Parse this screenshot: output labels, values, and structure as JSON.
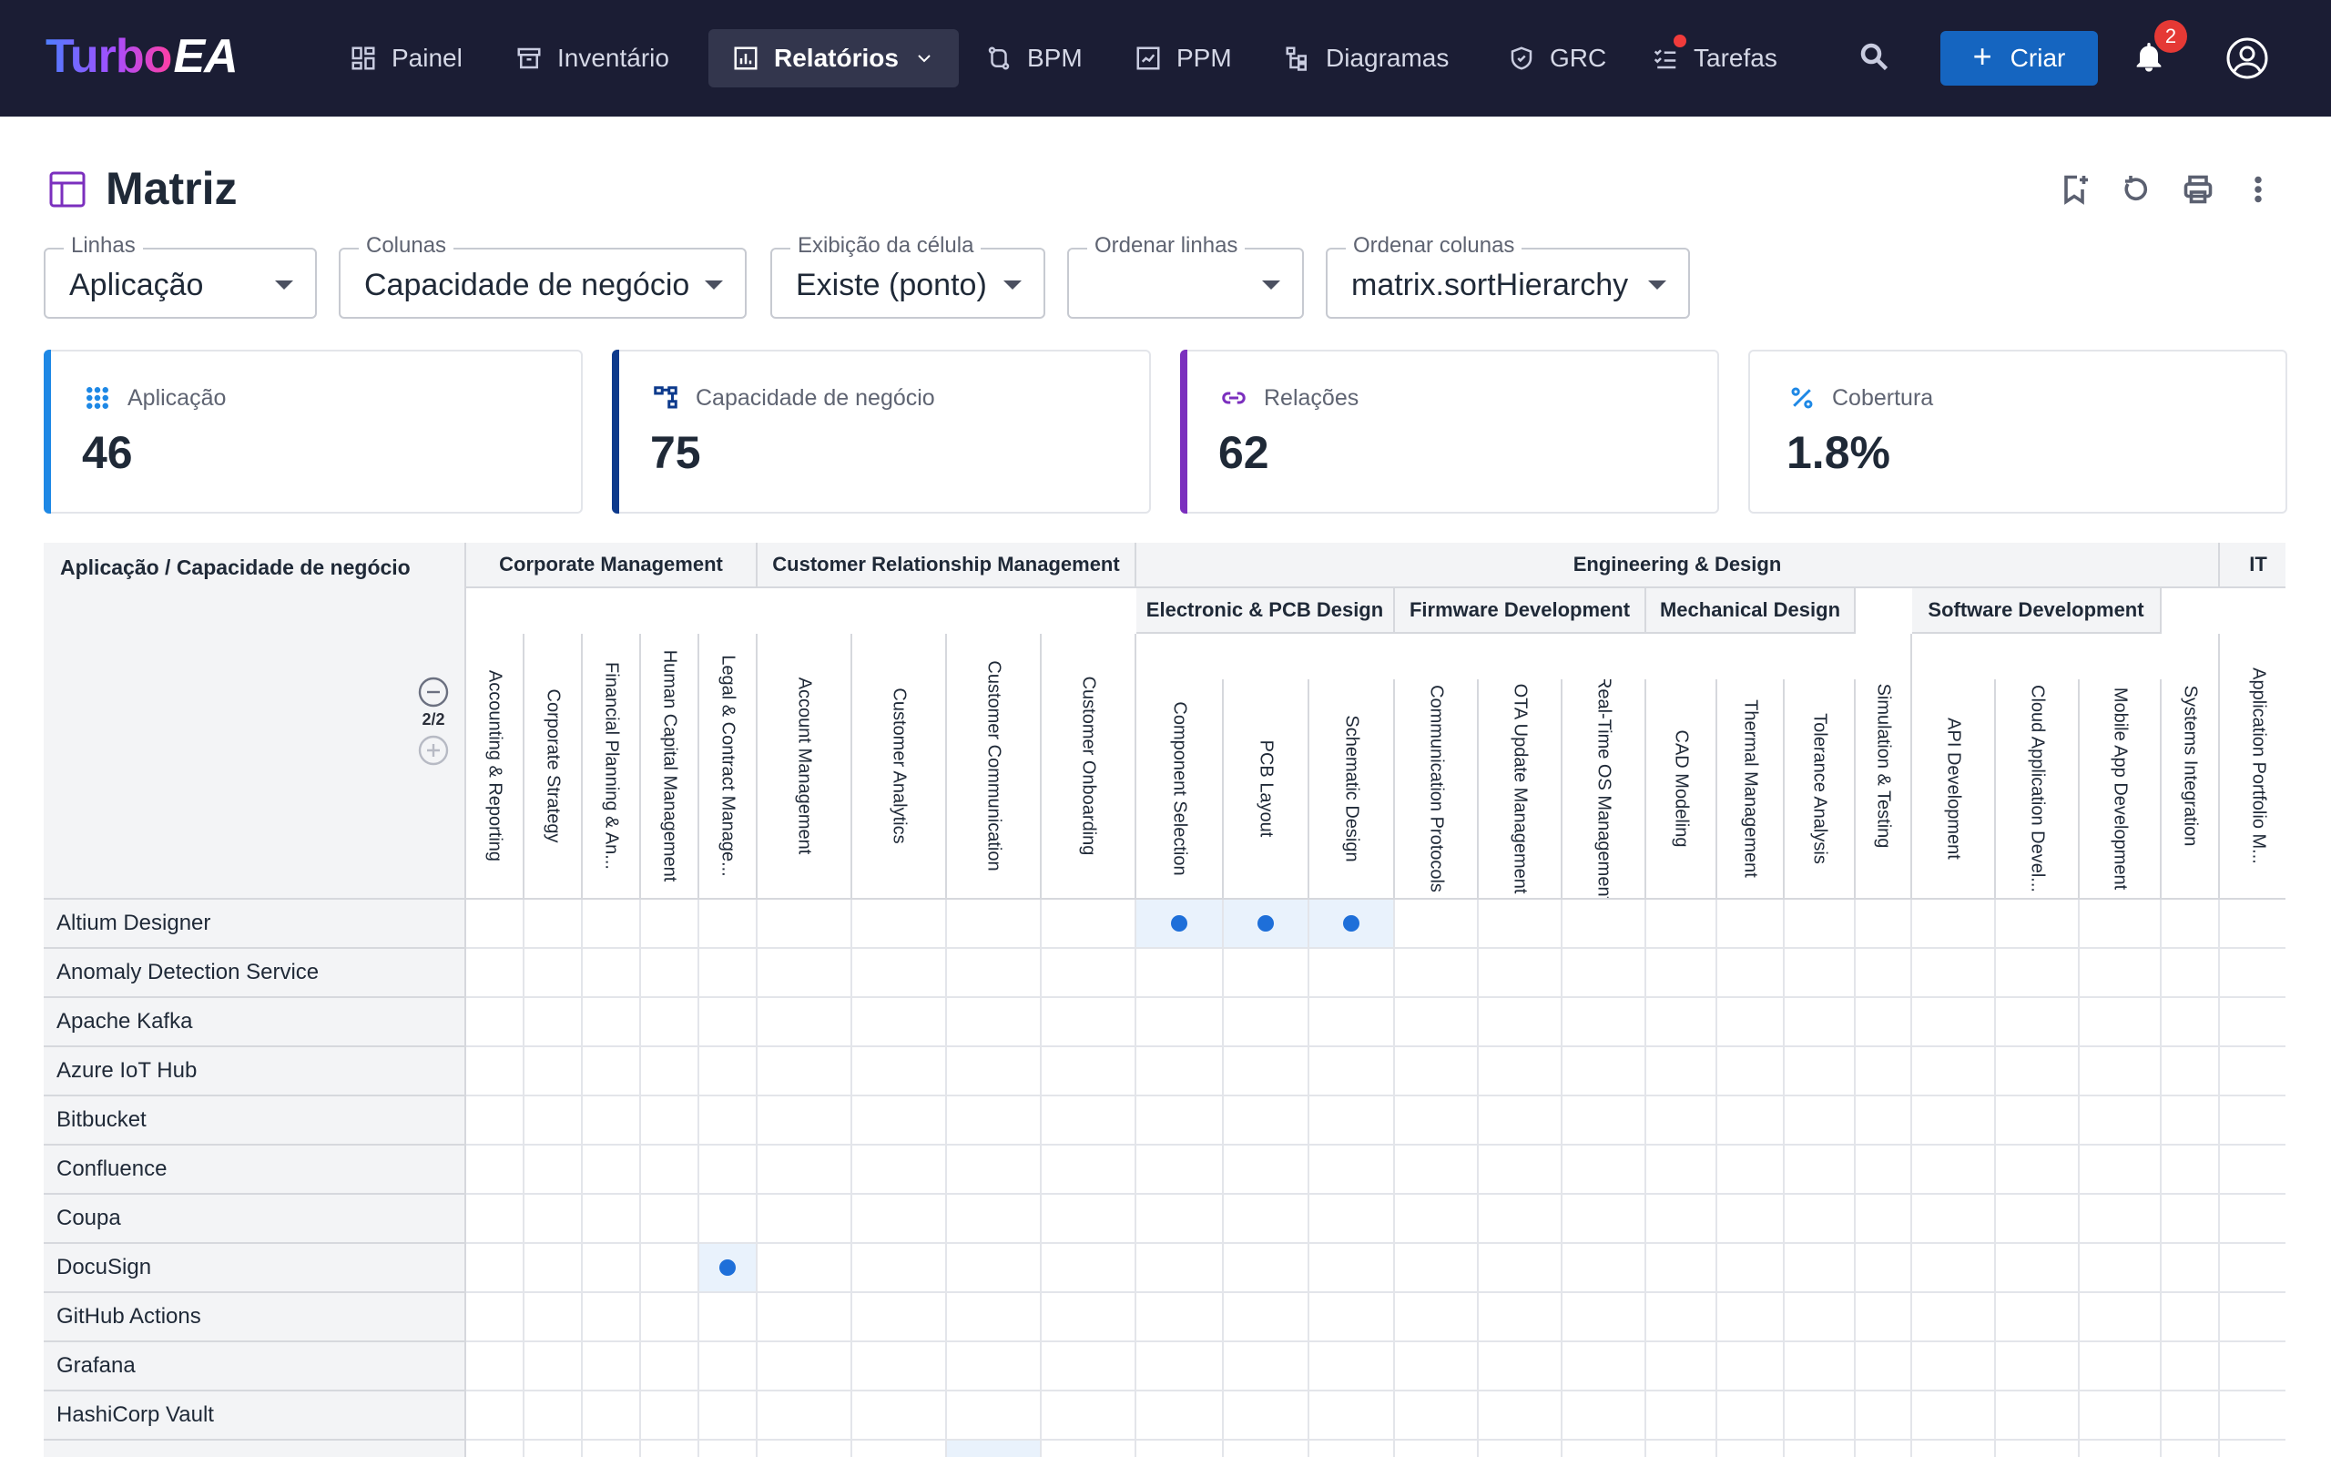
{
  "app": {
    "logo_turbo": "Turbo",
    "logo_ea": "EA"
  },
  "nav": {
    "painel": "Painel",
    "inventario": "Inventário",
    "relatorios": "Relatórios",
    "bpm": "BPM",
    "ppm": "PPM",
    "diagramas": "Diagramas",
    "grc": "GRC",
    "tarefas": "Tarefas",
    "criar": "Criar",
    "notifications_count": "2"
  },
  "page": {
    "title": "Matriz"
  },
  "controls": {
    "rows": {
      "label": "Linhas",
      "value": "Aplicação"
    },
    "cols": {
      "label": "Colunas",
      "value": "Capacidade de negócio"
    },
    "cell": {
      "label": "Exibição da célula",
      "value": "Existe (ponto)"
    },
    "sort_rows": {
      "label": "Ordenar linhas",
      "value": ""
    },
    "sort_cols": {
      "label": "Ordenar colunas",
      "value": "matrix.sortHierarchy"
    }
  },
  "stats": {
    "app": {
      "label": "Aplicação",
      "value": "46",
      "color": "#1e88e5"
    },
    "cap": {
      "label": "Capacidade de negócio",
      "value": "75",
      "color": "#0d3a8c"
    },
    "rel": {
      "label": "Relações",
      "value": "62",
      "color": "#7b2fbe"
    },
    "cov": {
      "label": "Cobertura",
      "value": "1.8%",
      "color": "#1e88e5"
    }
  },
  "matrix": {
    "corner_title": "Aplicação / Capacidade de negócio",
    "level": "2/2",
    "groups": [
      "Corporate Management",
      "Customer Relationship Management",
      "Engineering & Design",
      "IT"
    ],
    "subgroups": [
      "Electronic & PCB Design",
      "Firmware Development",
      "Mechanical Design",
      "Software Development"
    ],
    "columns": [
      "Accounting & Reporting",
      "Corporate Strategy",
      "Financial Planning & An...",
      "Human Capital Management",
      "Legal & Contract Manage...",
      "Account Management",
      "Customer Analytics",
      "Customer Communication",
      "Customer Onboarding",
      "Component Selection",
      "PCB Layout",
      "Schematic Design",
      "Communication Protocols",
      "OTA Update Management",
      "Real-Time OS Management",
      "CAD Modeling",
      "Thermal Management",
      "Tolerance Analysis",
      "Simulation & Testing",
      "API Development",
      "Cloud Application Devel...",
      "Mobile App Development",
      "Systems Integration",
      "Application Portfolio M..."
    ],
    "rows": [
      "Altium Designer",
      "Anomaly Detection Service",
      "Apache Kafka",
      "Azure IoT Hub",
      "Bitbucket",
      "Confluence",
      "Coupa",
      "DocuSign",
      "GitHub Actions",
      "Grafana",
      "HashiCorp Vault"
    ],
    "relations": [
      {
        "row": "Altium Designer",
        "col": "Component Selection"
      },
      {
        "row": "Altium Designer",
        "col": "PCB Layout"
      },
      {
        "row": "Altium Designer",
        "col": "Schematic Design"
      },
      {
        "row": "DocuSign",
        "col": "Legal & Contract Manage..."
      }
    ]
  }
}
